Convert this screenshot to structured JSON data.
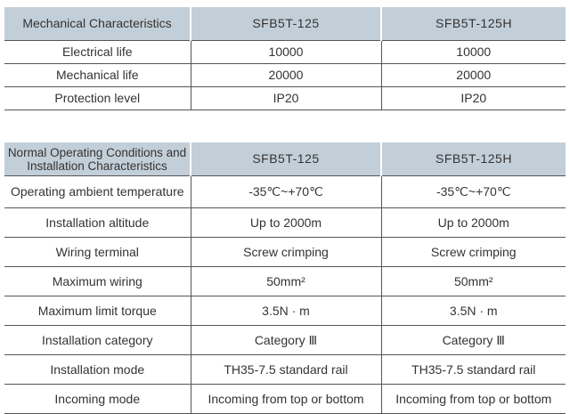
{
  "mechanical": {
    "headers": [
      "Mechanical Characteristics",
      "SFB5T-125",
      "SFB5T-125H"
    ],
    "rows": [
      [
        "Electrical life",
        "10000",
        "10000"
      ],
      [
        "Mechanical life",
        "20000",
        "20000"
      ],
      [
        "Protection level",
        "IP20",
        "IP20"
      ]
    ]
  },
  "operating": {
    "headers": [
      "Normal Operating Conditions and Installation Characteristics",
      "SFB5T-125",
      "SFB5T-125H"
    ],
    "rows": [
      [
        "Operating ambient temperature",
        "-35℃~+70℃",
        "-35℃~+70℃"
      ],
      [
        "Installation altitude",
        "Up to 2000m",
        "Up to 2000m"
      ],
      [
        "Wiring terminal",
        "Screw crimping",
        "Screw crimping"
      ],
      [
        "Maximum wiring",
        "50mm²",
        "50mm²"
      ],
      [
        "Maximum limit torque",
        "3.5N · m",
        "3.5N · m"
      ],
      [
        "Installation category",
        "Category Ⅲ",
        "Category Ⅲ"
      ],
      [
        "Installation mode",
        "TH35-7.5 standard rail",
        "TH35-7.5 standard rail"
      ],
      [
        "Incoming mode",
        "Incoming from top or bottom",
        "Incoming from top or bottom"
      ]
    ]
  },
  "colors": {
    "header_bg": "#c3cfd8",
    "rule": "#555555"
  }
}
